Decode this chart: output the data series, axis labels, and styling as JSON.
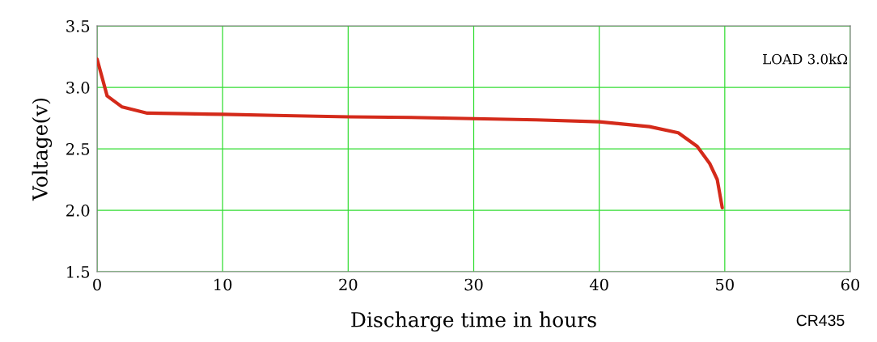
{
  "chart_data": {
    "type": "line",
    "xlabel": "Discharge time in hours",
    "ylabel": "Voltage(v)",
    "x": [
      0,
      0.8,
      2,
      4,
      7,
      10,
      15,
      20,
      25,
      30,
      35,
      40,
      42,
      44,
      46.3,
      47.8,
      48.8,
      49.4,
      49.8
    ],
    "series": [
      {
        "color": "#d42a1a",
        "values": [
          3.23,
          2.93,
          2.84,
          2.79,
          2.785,
          2.78,
          2.77,
          2.76,
          2.755,
          2.745,
          2.735,
          2.72,
          2.7,
          2.68,
          2.63,
          2.52,
          2.38,
          2.25,
          2.02
        ]
      }
    ],
    "xlim": [
      0,
      60
    ],
    "xticks": [
      0,
      10,
      20,
      30,
      40,
      50,
      60
    ],
    "ylim": [
      1.5,
      3.5
    ],
    "yticks": [
      1.5,
      {
        "value": 2,
        "label": "2.0"
      },
      2.5,
      {
        "value": 3,
        "label": "3.0"
      },
      3.5
    ],
    "grid": true,
    "legend": false,
    "marker": "none",
    "line_style": "solid",
    "annotations": [
      "LOAD 3.0kΩ",
      "CR435"
    ]
  }
}
